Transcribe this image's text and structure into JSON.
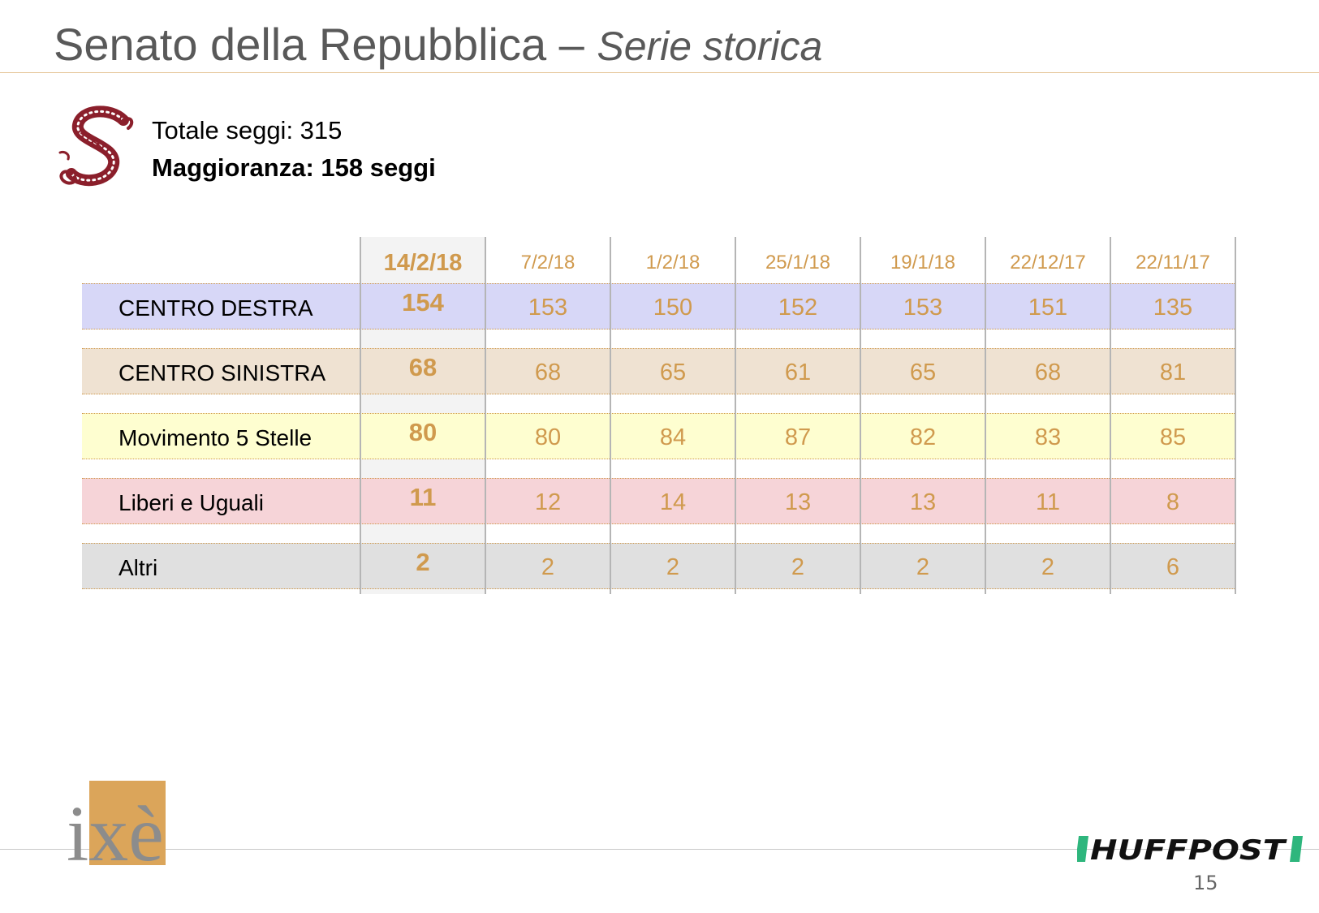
{
  "header": {
    "title_main": "Senato della Repubblica – ",
    "title_sub": "Serie storica"
  },
  "info": {
    "total_seats": "Totale seggi: 315",
    "majority": "Maggioranza: 158 seggi"
  },
  "table": {
    "columns": [
      "14/2/18",
      "7/2/18",
      "1/2/18",
      "25/1/18",
      "19/1/18",
      "22/12/17",
      "22/11/17"
    ],
    "rows": [
      {
        "label": "CENTRO DESTRA",
        "values": [
          "154",
          "153",
          "150",
          "152",
          "153",
          "151",
          "135"
        ],
        "color": "#d7d7f7"
      },
      {
        "label": "CENTRO SINISTRA",
        "values": [
          "68",
          "68",
          "65",
          "61",
          "65",
          "68",
          "81"
        ],
        "color": "#efe2d2"
      },
      {
        "label": "Movimento 5 Stelle",
        "values": [
          "80",
          "80",
          "84",
          "87",
          "82",
          "83",
          "85"
        ],
        "color": "#fefed0"
      },
      {
        "label": "Liberi e Uguali",
        "values": [
          "11",
          "12",
          "14",
          "13",
          "13",
          "11",
          "8"
        ],
        "color": "#f6d4d8"
      },
      {
        "label": "Altri",
        "values": [
          "2",
          "2",
          "2",
          "2",
          "2",
          "2",
          "6"
        ],
        "color": "#e0e0e0"
      }
    ]
  },
  "colors": {
    "accent": "#d09a4e",
    "title_text": "#595959",
    "senate_logo": "#8b1f2b",
    "ixe_gold": "#dba55a",
    "huffpost_green": "#2eb67d"
  },
  "footer": {
    "ixe_logo_text": "ixè",
    "huffpost_logo_text": "HUFFPOST",
    "page_number": "15"
  },
  "icons": {
    "senate": "senate-emblem-icon"
  }
}
